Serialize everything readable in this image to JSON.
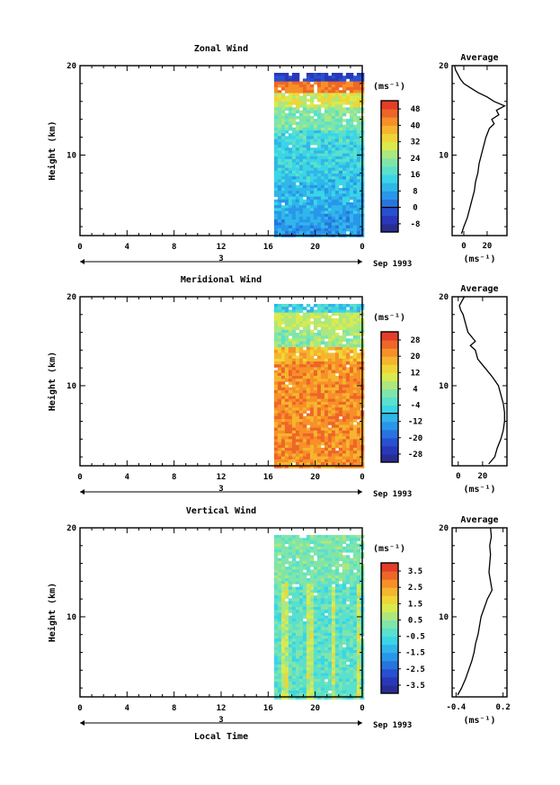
{
  "chart_data": [
    {
      "type": "heatmap",
      "title": "Zonal Wind",
      "ylabel": "Height (km)",
      "xlabel": "",
      "xlim": [
        0,
        24
      ],
      "ylim": [
        1,
        20
      ],
      "x_tick_labels": [
        "0",
        "4",
        "8",
        "12",
        "16",
        "20",
        "0"
      ],
      "y_tick_labels": [
        "10",
        "20"
      ],
      "day_label": "3",
      "date_label": "Sep 1993",
      "data_start_hour": 16.5,
      "colorbar": {
        "unit": "(ms⁻¹)",
        "tick_labels": [
          "48",
          "40",
          "32",
          "24",
          "16",
          "8",
          "0",
          "-8"
        ],
        "range": [
          -12,
          52
        ]
      },
      "profile": {
        "title": "Average",
        "xlabel": "(ms⁻¹)",
        "x_tick_labels": [
          "0",
          "20"
        ],
        "xlim": [
          -10,
          37
        ],
        "height": [
          1.2,
          2,
          3,
          4,
          5,
          6,
          7,
          8,
          9,
          10,
          11,
          12,
          13,
          13.5,
          14,
          14.5,
          15,
          15.5,
          16,
          16.5,
          17,
          17.5,
          18,
          18.5,
          19,
          19.5,
          20
        ],
        "value": [
          -2,
          0,
          3,
          5,
          7,
          9,
          10,
          12,
          13,
          15,
          17,
          19,
          22,
          26,
          24,
          30,
          28,
          35,
          26,
          20,
          12,
          6,
          0,
          -3,
          -5,
          -7,
          -8
        ]
      }
    },
    {
      "type": "heatmap",
      "title": "Meridional Wind",
      "ylabel": "Height (km)",
      "xlabel": "",
      "xlim": [
        0,
        24
      ],
      "ylim": [
        1,
        20
      ],
      "x_tick_labels": [
        "0",
        "4",
        "8",
        "12",
        "16",
        "20",
        "0"
      ],
      "y_tick_labels": [
        "10",
        "20"
      ],
      "day_label": "3",
      "date_label": "Sep 1993",
      "data_start_hour": 16.5,
      "colorbar": {
        "unit": "(ms⁻¹)",
        "tick_labels": [
          "28",
          "20",
          "12",
          "4",
          "-4",
          "-12",
          "-20",
          "-28"
        ],
        "range": [
          -32,
          32
        ]
      },
      "profile": {
        "title": "Average",
        "xlabel": "(ms⁻¹)",
        "x_tick_labels": [
          "0",
          "20"
        ],
        "xlim": [
          -5,
          40
        ],
        "height": [
          1.2,
          2,
          3,
          4,
          5,
          6,
          7,
          8,
          9,
          10,
          11,
          12,
          13,
          14,
          14.5,
          15,
          16,
          17,
          18,
          18.5,
          19,
          19.5,
          20
        ],
        "value": [
          25,
          30,
          32,
          35,
          37,
          38,
          38,
          37,
          35,
          33,
          28,
          22,
          16,
          14,
          10,
          14,
          8,
          6,
          4,
          2,
          1,
          3,
          5
        ]
      }
    },
    {
      "type": "heatmap",
      "title": "Vertical Wind",
      "ylabel": "Height (km)",
      "xlabel": "Local Time",
      "xlim": [
        0,
        24
      ],
      "ylim": [
        1,
        20
      ],
      "x_tick_labels": [
        "0",
        "4",
        "8",
        "12",
        "16",
        "20",
        "0"
      ],
      "y_tick_labels": [
        "10",
        "20"
      ],
      "day_label": "3",
      "date_label": "Sep 1993",
      "data_start_hour": 16.5,
      "colorbar": {
        "unit": "(ms⁻¹)",
        "tick_labels": [
          "3.5",
          "2.5",
          "1.5",
          "0.5",
          "-0.5",
          "-1.5",
          "-2.5",
          "-3.5"
        ],
        "range": [
          -4,
          4
        ]
      },
      "profile": {
        "title": "Average",
        "xlabel": "(ms⁻¹)",
        "x_tick_labels": [
          "-0.4",
          "0.2"
        ],
        "xlim": [
          -0.45,
          0.25
        ],
        "height": [
          1.2,
          2,
          3,
          4,
          5,
          6,
          7,
          8,
          9,
          10,
          11,
          12,
          13,
          14,
          15,
          16,
          17,
          18,
          19,
          20
        ],
        "value": [
          -0.38,
          -0.33,
          -0.28,
          -0.24,
          -0.2,
          -0.17,
          -0.15,
          -0.12,
          -0.1,
          -0.08,
          -0.04,
          0.0,
          0.06,
          0.04,
          0.02,
          0.03,
          0.04,
          0.03,
          0.05,
          0.04
        ]
      }
    }
  ]
}
